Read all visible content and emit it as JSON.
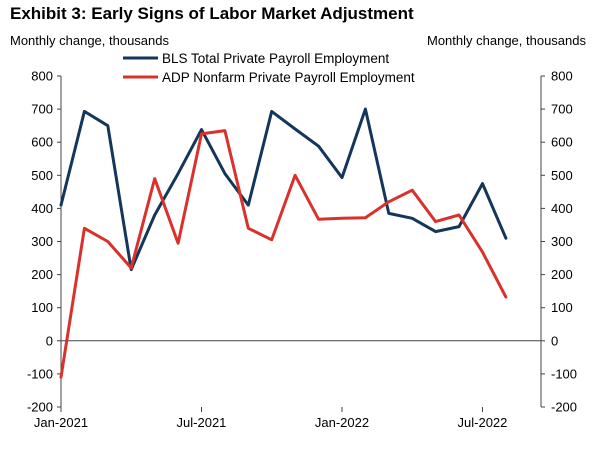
{
  "title": "Exhibit 3: Early Signs of Labor Market Adjustment",
  "chart_data": {
    "type": "line",
    "title": "Exhibit 3: Early Signs of Labor Market Adjustment",
    "ylabel_left": "Monthly change, thousands",
    "ylabel_right": "Monthly change, thousands",
    "ylim": [
      -200,
      800
    ],
    "yticks": [
      -200,
      -100,
      0,
      100,
      200,
      300,
      400,
      500,
      600,
      700,
      800
    ],
    "xticks": [
      {
        "x": "2021-01",
        "label": "Jan-2021"
      },
      {
        "x": "2021-07",
        "label": "Jul-2021"
      },
      {
        "x": "2022-01",
        "label": "Jan-2022"
      },
      {
        "x": "2022-07",
        "label": "Jul-2022"
      }
    ],
    "x": [
      "2021-01",
      "2021-02",
      "2021-03",
      "2021-04",
      "2021-05",
      "2021-06",
      "2021-07",
      "2021-08",
      "2021-09",
      "2021-10",
      "2021-11",
      "2021-12",
      "2022-01",
      "2022-02",
      "2022-03",
      "2022-04",
      "2022-05",
      "2022-06",
      "2022-07",
      "2022-08"
    ],
    "legend_position": "top",
    "grid": false,
    "series": [
      {
        "name": "BLS Total Private Payroll Employment",
        "color": "#14365a",
        "values": [
          410,
          693,
          650,
          215,
          380,
          505,
          638,
          505,
          410,
          693,
          640,
          588,
          493,
          700,
          385,
          370,
          330,
          345,
          475,
          310
        ]
      },
      {
        "name": "ADP Nonfarm Private Payroll Employment",
        "color": "#d9312b",
        "values": [
          -110,
          340,
          300,
          220,
          490,
          295,
          625,
          635,
          340,
          305,
          500,
          367,
          370,
          372,
          420,
          455,
          360,
          380,
          268,
          132
        ]
      }
    ]
  }
}
